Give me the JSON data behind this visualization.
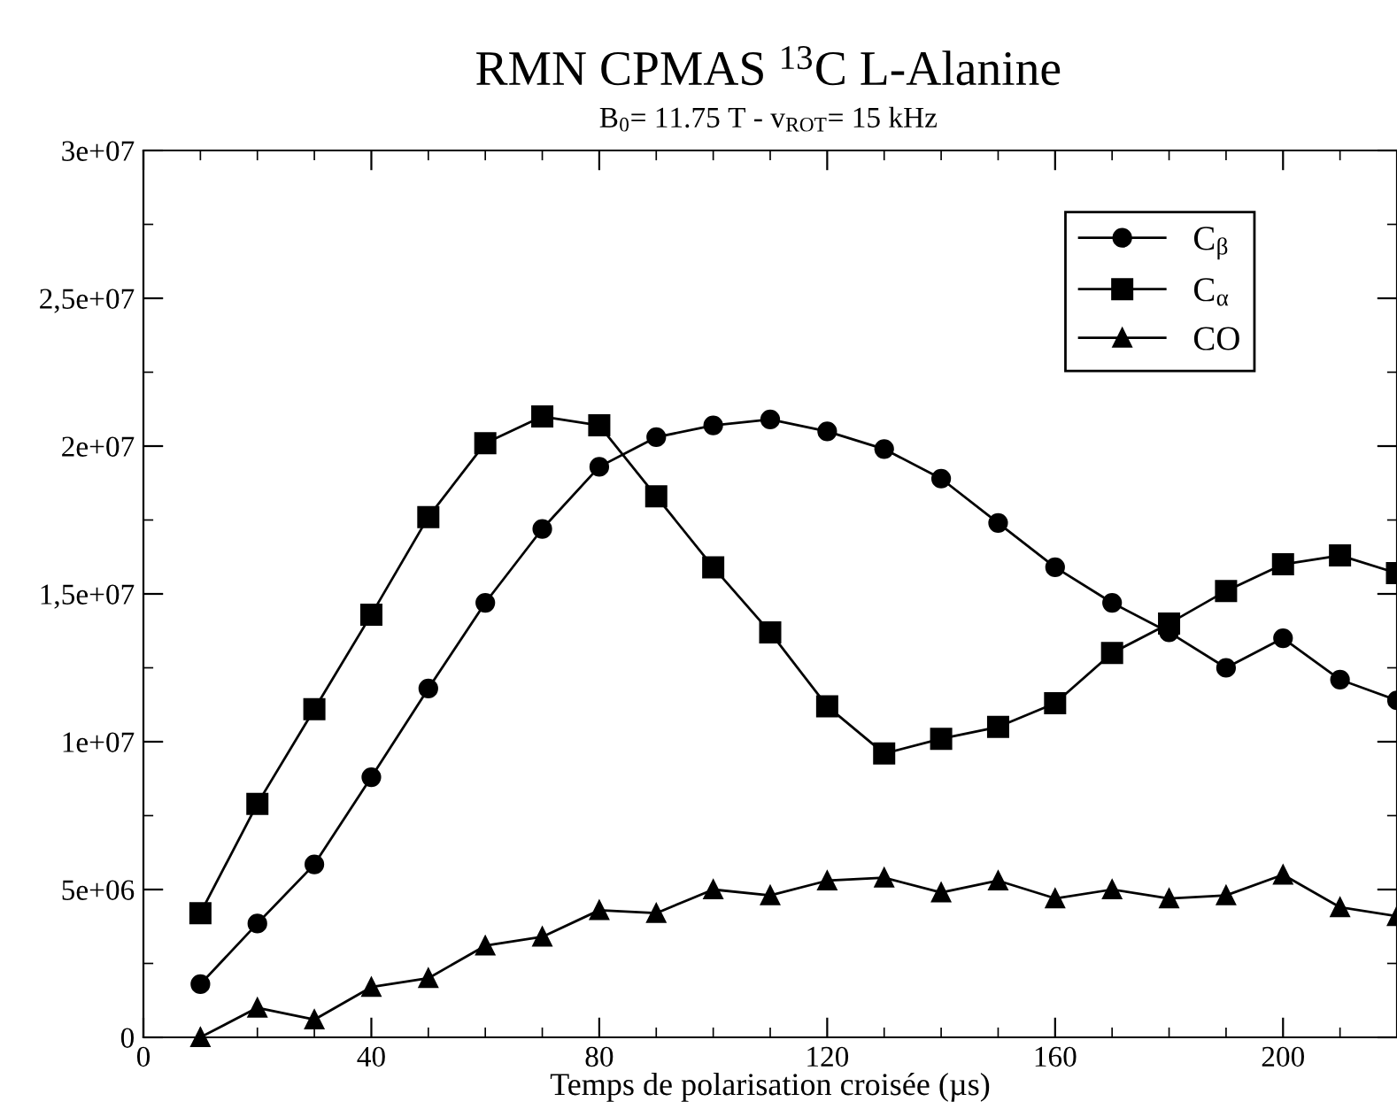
{
  "chart_data": {
    "type": "line",
    "title": "RMN CPMAS $^{13}$C L-Alanine",
    "subtitle": "B$_{0}$= 11.75 T - v$_{ROT}$= 15 kHz",
    "xlabel": "Temps de polarisation croisée (µs)",
    "x": [
      10,
      20,
      30,
      40,
      50,
      60,
      70,
      80,
      90,
      100,
      110,
      120,
      130,
      140,
      150,
      160,
      170,
      180,
      190,
      200,
      210,
      220
    ],
    "series": [
      {
        "name": "C$_{β}$",
        "color": "#000000",
        "marker": "circle",
        "values": [
          1800000,
          3850000,
          5850000,
          8800000,
          11800000,
          14700000,
          17200000,
          19300000,
          20300000,
          20700000,
          20900000,
          20500000,
          19900000,
          18900000,
          17400000,
          15900000,
          14700000,
          13700000,
          12500000,
          13500000,
          12100000,
          11400000
        ]
      },
      {
        "name": "C$_{α}$",
        "color": "#000000",
        "marker": "square",
        "values": [
          4200000,
          7900000,
          11100000,
          14300000,
          17600000,
          20100000,
          21000000,
          20700000,
          18300000,
          15900000,
          13700000,
          11200000,
          9600000,
          10100000,
          10500000,
          11300000,
          13000000,
          14000000,
          15100000,
          16000000,
          16300000,
          15700000
        ]
      },
      {
        "name": "CO",
        "color": "#000000",
        "marker": "triangle",
        "values": [
          0,
          1000000,
          600000,
          1700000,
          2000000,
          3100000,
          3400000,
          4300000,
          4200000,
          5000000,
          4800000,
          5300000,
          5400000,
          4900000,
          5300000,
          4700000,
          5000000,
          4700000,
          4800000,
          5500000,
          4400000,
          4100000
        ]
      }
    ],
    "xlim": [
      0,
      220
    ],
    "xticks": [
      0,
      40,
      80,
      120,
      160,
      200
    ],
    "ylim": [
      0,
      30000000
    ],
    "yticks": [
      {
        "value": 0,
        "label": "0"
      },
      {
        "value": 5000000,
        "label": "5e+06"
      },
      {
        "value": 10000000,
        "label": "1e+07"
      },
      {
        "value": 15000000,
        "label": "1,5e+07"
      },
      {
        "value": 20000000,
        "label": "2e+07"
      },
      {
        "value": 25000000,
        "label": "2,5e+07"
      },
      {
        "value": 30000000,
        "label": "3e+07"
      }
    ],
    "grid": false,
    "legend": "top right",
    "line_style": "solid"
  }
}
